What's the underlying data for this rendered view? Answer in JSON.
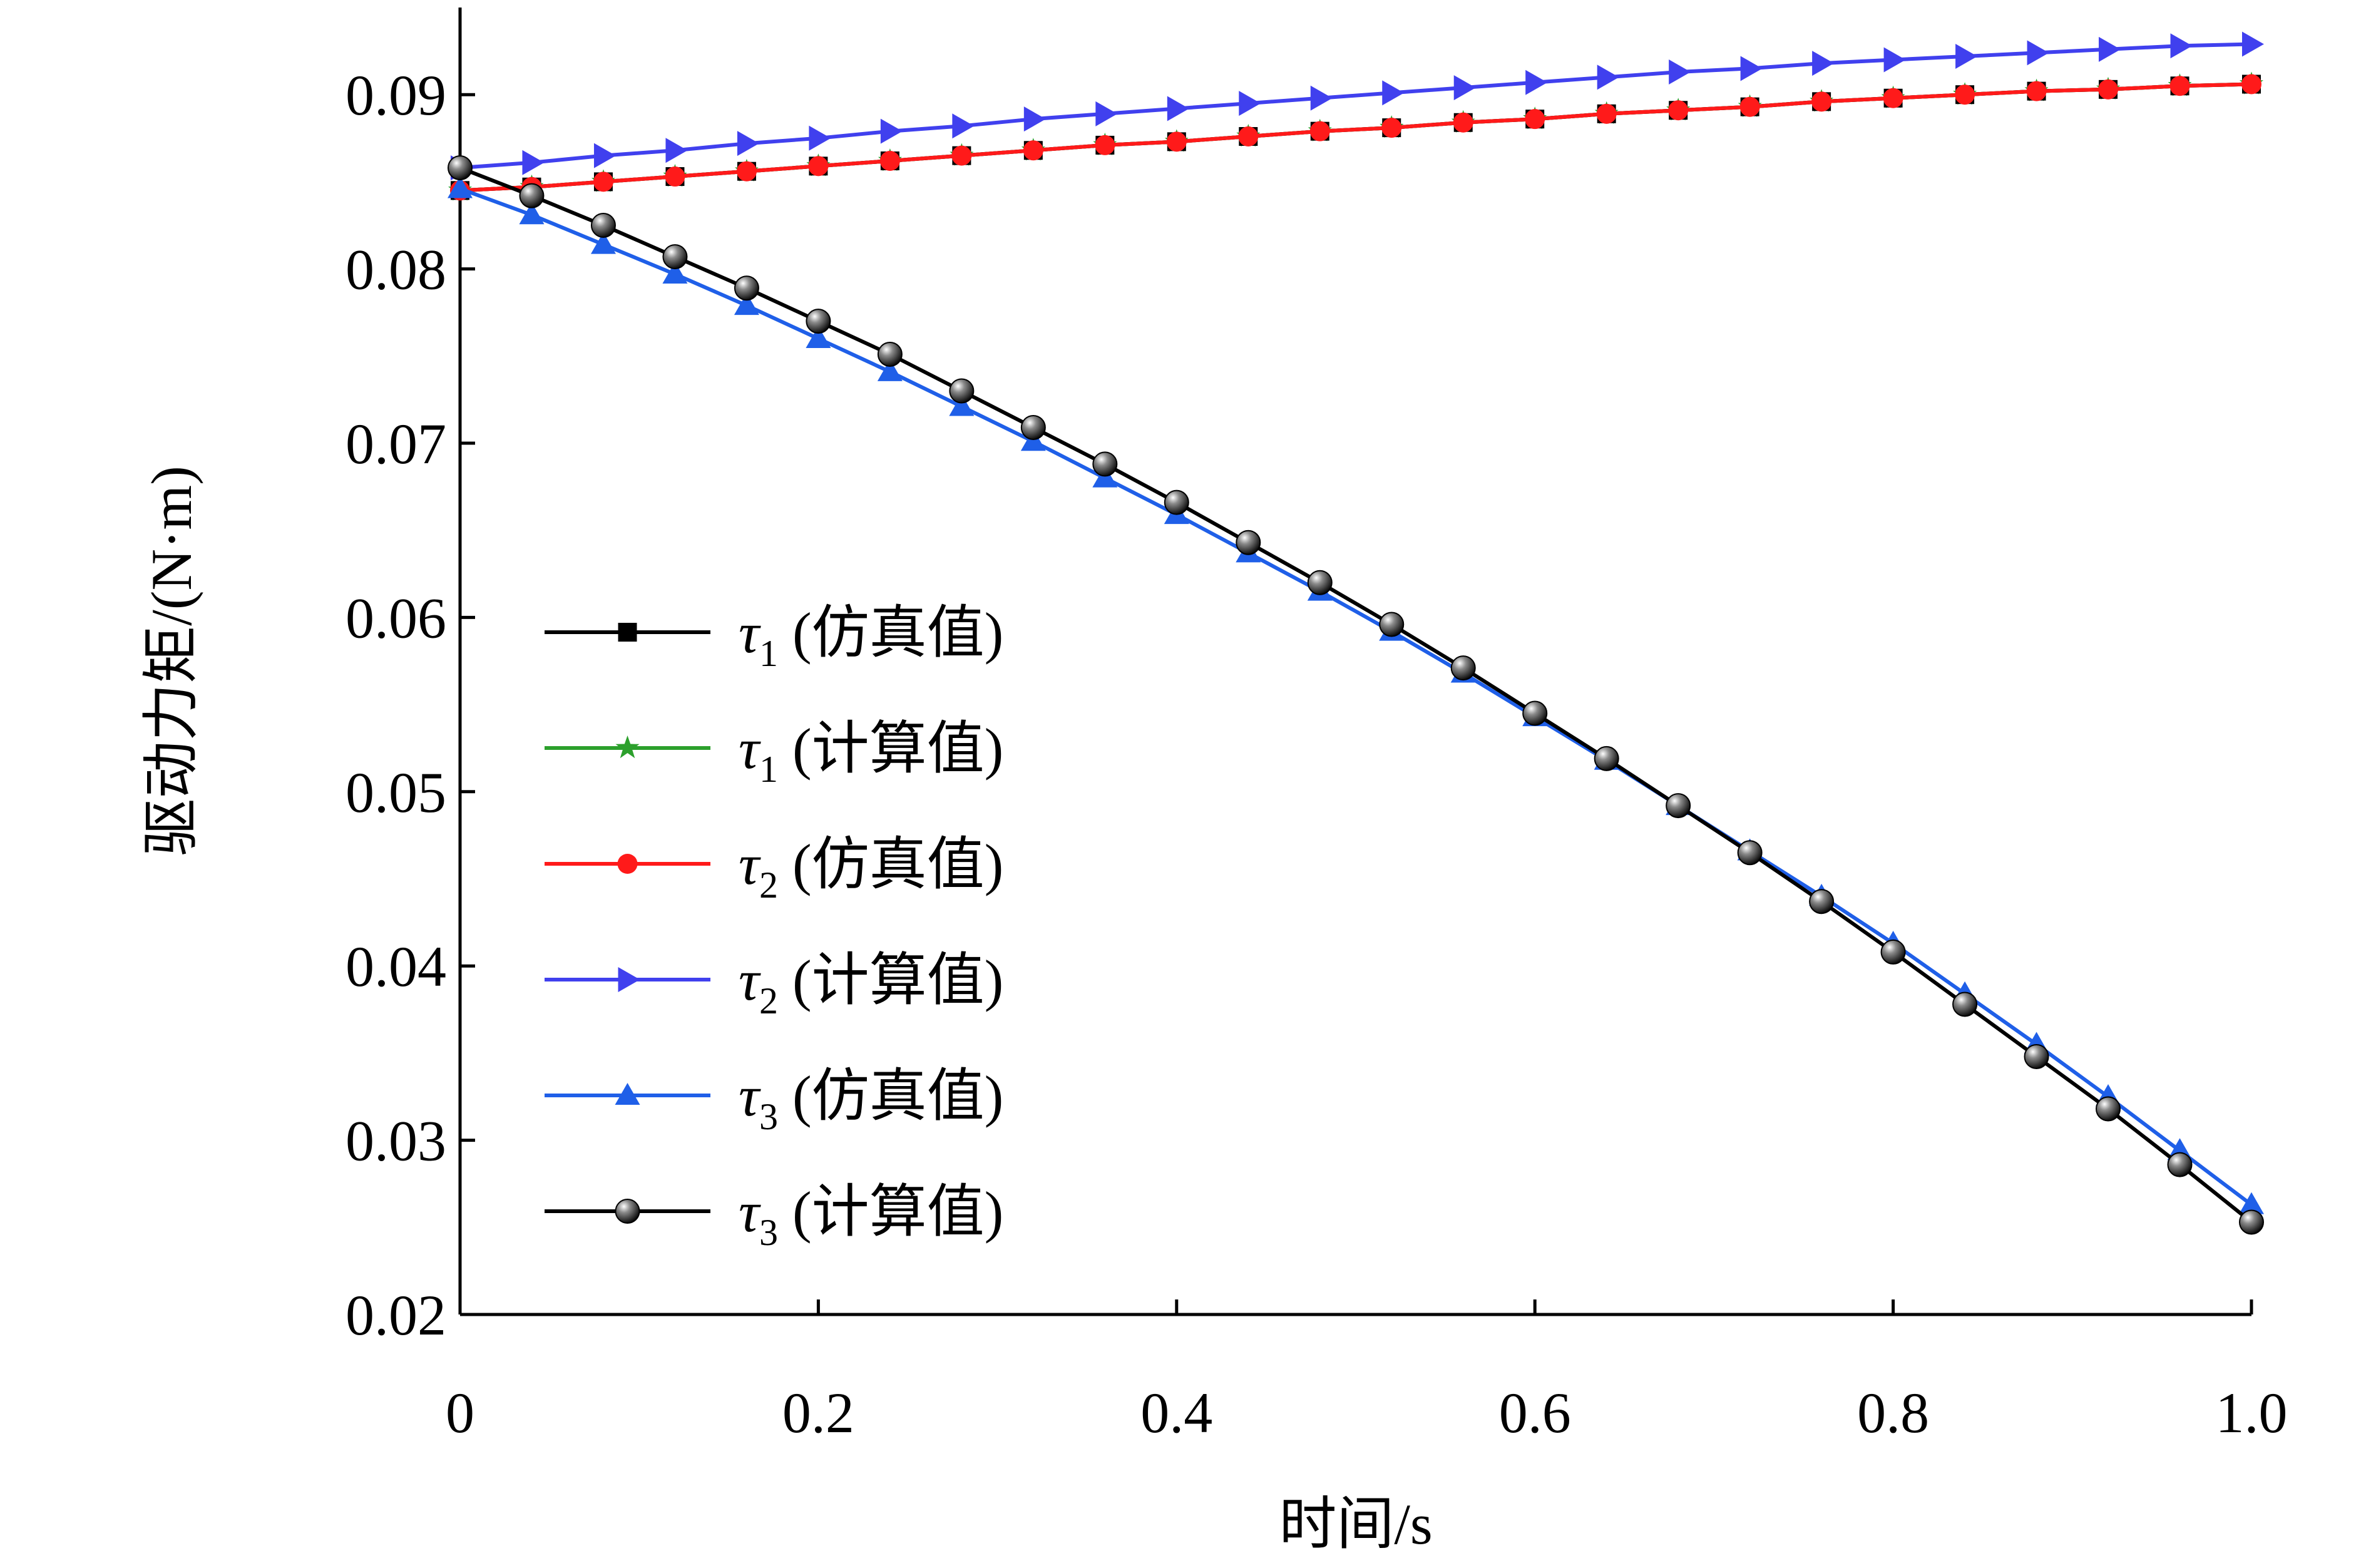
{
  "chart_data": {
    "type": "line",
    "title": "",
    "xlabel": "时间/s",
    "ylabel": "驱动力矩/(N·m)",
    "xlim": [
      0,
      1.0
    ],
    "ylim": [
      0.02,
      0.095
    ],
    "xticks": [
      0,
      0.2,
      0.4,
      0.6,
      0.8,
      1.0
    ],
    "xtick_labels": [
      "0",
      "0.2",
      "0.4",
      "0.6",
      "0.8",
      "1.0"
    ],
    "yticks": [
      0.02,
      0.03,
      0.04,
      0.05,
      0.06,
      0.07,
      0.08,
      0.09
    ],
    "ytick_labels": [
      "0.02",
      "0.03",
      "0.04",
      "0.05",
      "0.06",
      "0.07",
      "0.08",
      "0.09"
    ],
    "grid": false,
    "legend_position": "center-left",
    "x": [
      0,
      0.04,
      0.08,
      0.12,
      0.16,
      0.2,
      0.24,
      0.28,
      0.32,
      0.36,
      0.4,
      0.44,
      0.48,
      0.52,
      0.56,
      0.6,
      0.64,
      0.68,
      0.72,
      0.76,
      0.8,
      0.84,
      0.88,
      0.92,
      0.96,
      1.0
    ],
    "series": [
      {
        "name": "τ1 (仿真值)",
        "symbol": "τ",
        "subscript": "1",
        "suffix": " (仿真值)",
        "color": "#000000",
        "marker": "square",
        "values": [
          0.0845,
          0.0847,
          0.085,
          0.0853,
          0.0856,
          0.0859,
          0.0862,
          0.0865,
          0.0868,
          0.0871,
          0.0873,
          0.0876,
          0.0879,
          0.0881,
          0.0884,
          0.0886,
          0.0889,
          0.0891,
          0.0893,
          0.0896,
          0.0898,
          0.09,
          0.0902,
          0.0903,
          0.0905,
          0.0906
        ]
      },
      {
        "name": "τ1 (计算值)",
        "symbol": "τ",
        "subscript": "1",
        "suffix": " (计算值)",
        "color": "#2ca02c",
        "marker": "star",
        "values": [
          0.0845,
          0.0847,
          0.085,
          0.0853,
          0.0856,
          0.0859,
          0.0862,
          0.0865,
          0.0868,
          0.0871,
          0.0873,
          0.0876,
          0.0879,
          0.0881,
          0.0884,
          0.0886,
          0.0889,
          0.0891,
          0.0893,
          0.0896,
          0.0898,
          0.09,
          0.0902,
          0.0903,
          0.0905,
          0.0906
        ]
      },
      {
        "name": "τ2 (仿真值)",
        "symbol": "τ",
        "subscript": "2",
        "suffix": " (仿真值)",
        "color": "#ff1a1a",
        "marker": "circle",
        "values": [
          0.0845,
          0.0847,
          0.085,
          0.0853,
          0.0856,
          0.0859,
          0.0862,
          0.0865,
          0.0868,
          0.0871,
          0.0873,
          0.0876,
          0.0879,
          0.0881,
          0.0884,
          0.0886,
          0.0889,
          0.0891,
          0.0893,
          0.0896,
          0.0898,
          0.09,
          0.0902,
          0.0903,
          0.0905,
          0.0906
        ]
      },
      {
        "name": "τ2 (计算值)",
        "symbol": "τ",
        "subscript": "2",
        "suffix": " (计算值)",
        "color": "#4040ee",
        "marker": "triangle-right",
        "values": [
          0.0858,
          0.0861,
          0.0865,
          0.0868,
          0.0872,
          0.0875,
          0.0879,
          0.0882,
          0.0886,
          0.0889,
          0.0892,
          0.0895,
          0.0898,
          0.0901,
          0.0904,
          0.0907,
          0.091,
          0.0913,
          0.0915,
          0.0918,
          0.092,
          0.0922,
          0.0924,
          0.0926,
          0.0928,
          0.0929
        ]
      },
      {
        "name": "τ3 (仿真值)",
        "symbol": "τ",
        "subscript": "3",
        "suffix": " (仿真值)",
        "color": "#1f5fe8",
        "marker": "triangle-up",
        "values": [
          0.0846,
          0.0831,
          0.0814,
          0.0797,
          0.0779,
          0.076,
          0.0741,
          0.0721,
          0.0701,
          0.068,
          0.0659,
          0.0637,
          0.0615,
          0.0592,
          0.0568,
          0.0543,
          0.0518,
          0.0492,
          0.0466,
          0.044,
          0.0413,
          0.0384,
          0.0355,
          0.0325,
          0.0294,
          0.0263
        ]
      },
      {
        "name": "τ3 (计算值)",
        "symbol": "τ",
        "subscript": "3",
        "suffix": " (计算值)",
        "color": "#000000",
        "marker": "sphere",
        "values": [
          0.0858,
          0.0842,
          0.0825,
          0.0807,
          0.0789,
          0.077,
          0.0751,
          0.073,
          0.0709,
          0.0688,
          0.0666,
          0.0643,
          0.062,
          0.0596,
          0.0571,
          0.0545,
          0.0519,
          0.0492,
          0.0465,
          0.0437,
          0.0408,
          0.0378,
          0.0348,
          0.0318,
          0.0286,
          0.0253
        ]
      }
    ]
  }
}
